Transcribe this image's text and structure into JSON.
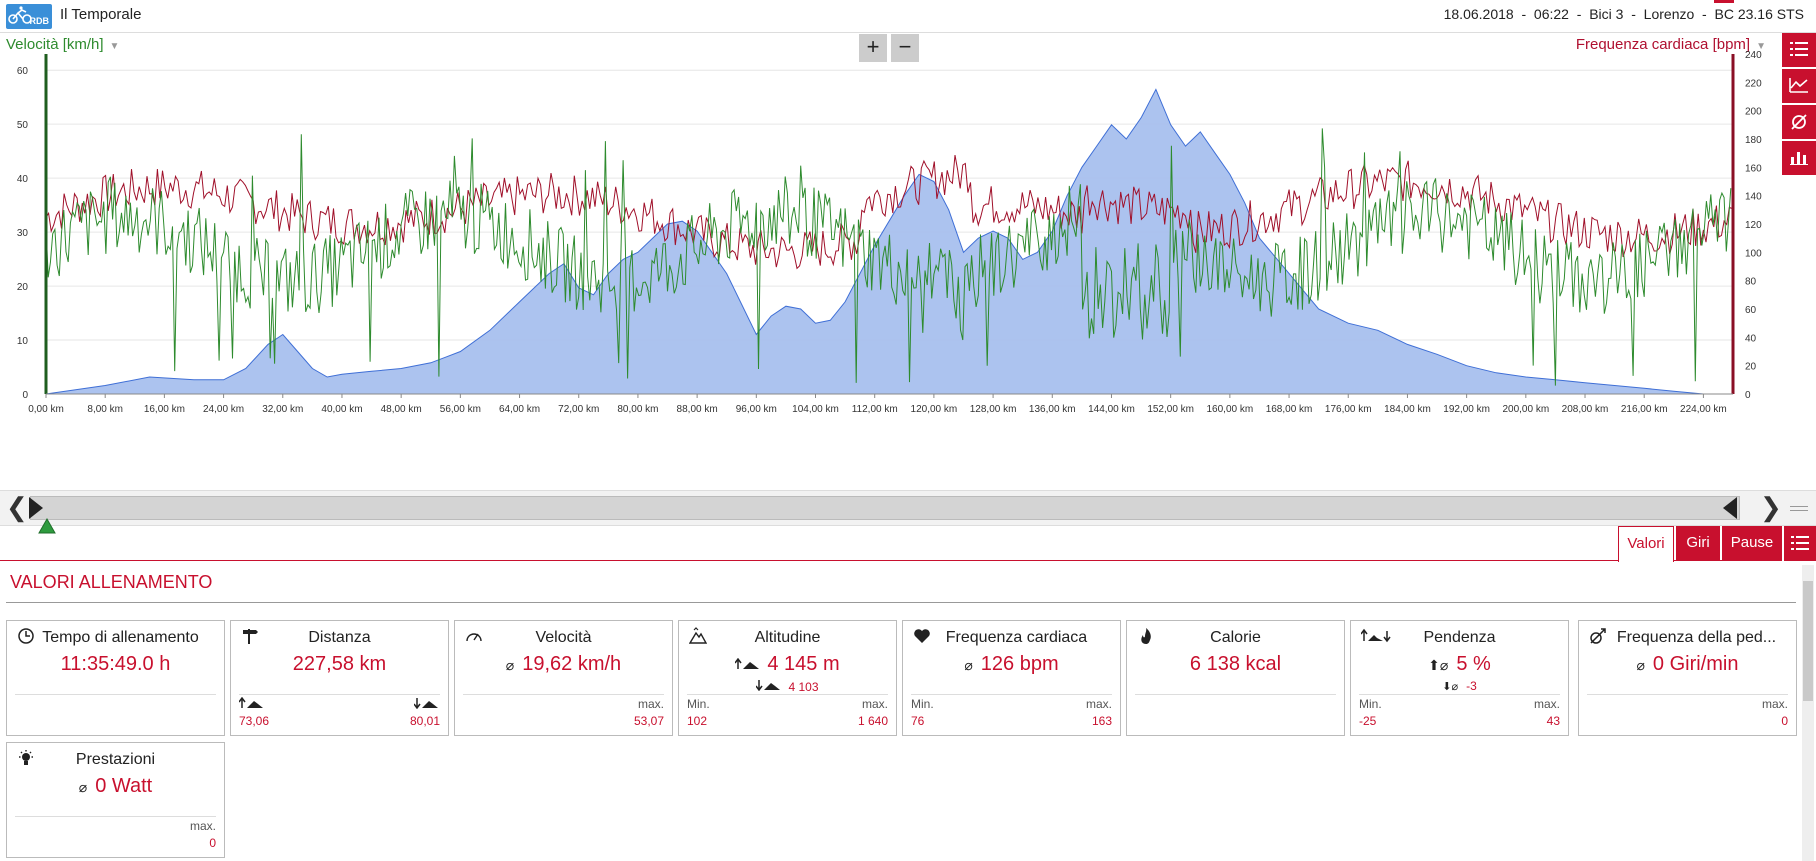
{
  "app": {
    "logo_text": "RDB",
    "title": "Il Temporale"
  },
  "session": {
    "date": "18.06.2018",
    "time": "06:22",
    "bike": "Bici 3",
    "user": "Lorenzo",
    "device": "BC 23.16 STS"
  },
  "chart": {
    "left_axis_title": "Velocità [km/h]",
    "right_axis_title": "Frequenza cardiaca [bpm]",
    "zoom_in": "+",
    "zoom_out": "−",
    "sidebar_icons": [
      "list-icon",
      "line-chart-icon",
      "average-icon",
      "bar-chart-icon"
    ]
  },
  "chart_data": {
    "type": "line",
    "xlabel": "",
    "ylabel": "Velocità [km/h]",
    "y2label": "Frequenza cardiaca [bpm]",
    "x_ticks": [
      "0,00 km",
      "8,00 km",
      "16,00 km",
      "24,00 km",
      "32,00 km",
      "40,00 km",
      "48,00 km",
      "56,00 km",
      "64,00 km",
      "72,00 km",
      "80,00 km",
      "88,00 km",
      "96,00 km",
      "104,00 km",
      "112,00 km",
      "120,00 km",
      "128,00 km",
      "136,00 km",
      "144,00 km",
      "152,00 km",
      "160,00 km",
      "168,00 km",
      "176,00 km",
      "184,00 km",
      "192,00 km",
      "200,00 km",
      "208,00 km",
      "216,00 km",
      "224,00 km"
    ],
    "xlim": [
      0,
      228
    ],
    "y_left_ticks": [
      "0",
      "10",
      "20",
      "30",
      "40",
      "50",
      "60"
    ],
    "y_left_lim": [
      0,
      63
    ],
    "y_right_ticks": [
      "0",
      "20",
      "40",
      "60",
      "80",
      "100",
      "120",
      "140",
      "160",
      "180",
      "200",
      "220",
      "240"
    ],
    "y_right_lim": [
      0,
      240
    ],
    "series": [
      {
        "name": "Altitudine",
        "color": "#a8c0ee",
        "axis": "right",
        "kind": "area",
        "x": [
          0,
          8,
          14,
          20,
          24,
          27,
          30,
          32,
          34,
          36,
          38,
          40,
          44,
          48,
          52,
          54,
          56,
          60,
          64,
          68,
          70,
          72,
          74,
          76,
          78,
          80,
          84,
          86,
          88,
          92,
          96,
          98,
          100,
          102,
          104,
          106,
          108,
          110,
          112,
          116,
          118,
          120,
          122,
          124,
          126,
          128,
          130,
          132,
          134,
          136,
          138,
          140,
          142,
          144,
          146,
          148,
          150,
          152,
          154,
          156,
          158,
          160,
          162,
          164,
          168,
          172,
          176,
          180,
          184,
          188,
          192,
          196,
          200,
          204,
          208,
          212,
          216,
          220,
          224,
          228
        ],
        "y": [
          0,
          6,
          12,
          10,
          10,
          18,
          35,
          42,
          30,
          18,
          12,
          14,
          16,
          18,
          22,
          26,
          30,
          45,
          65,
          85,
          92,
          75,
          70,
          85,
          95,
          100,
          120,
          122,
          115,
          85,
          42,
          55,
          62,
          60,
          50,
          52,
          65,
          85,
          105,
          140,
          155,
          150,
          130,
          100,
          110,
          115,
          110,
          95,
          100,
          115,
          140,
          160,
          175,
          190,
          180,
          195,
          215,
          190,
          175,
          185,
          170,
          155,
          135,
          110,
          85,
          60,
          50,
          45,
          35,
          28,
          20,
          15,
          12,
          10,
          8,
          6,
          4,
          2,
          0,
          0
        ]
      },
      {
        "name": "Velocità",
        "color": "#2e8b2e",
        "axis": "left",
        "kind": "line"
      },
      {
        "name": "Frequenza cardiaca",
        "color": "#a0102a",
        "axis": "right",
        "kind": "line"
      }
    ],
    "grid": true
  },
  "tabs": [
    "Valori",
    "Giri",
    "Pause"
  ],
  "section_title": "VALORI ALLENAMENTO",
  "cards": {
    "time": {
      "title": "Tempo di allenamento",
      "value": "11:35:49.0 h"
    },
    "distance": {
      "title": "Distanza",
      "value": "227,58 km",
      "up_val": "73,06",
      "down_val": "80,01"
    },
    "speed": {
      "title": "Velocità",
      "avg_sym": "⌀",
      "value": "19,62 km/h",
      "max_label": "max.",
      "max_val": "53,07"
    },
    "altitude": {
      "title": "Altitudine",
      "value": "4 145 m",
      "down_value": "4 103",
      "min_label": "Min.",
      "min_val": "102",
      "max_label": "max.",
      "max_val": "1 640"
    },
    "heart": {
      "title": "Frequenza cardiaca",
      "avg_sym": "⌀",
      "value": "126 bpm",
      "min_label": "Min.",
      "min_val": "76",
      "max_label": "max.",
      "max_val": "163"
    },
    "calories": {
      "title": "Calorie",
      "value": "6 138 kcal"
    },
    "slope": {
      "title": "Pendenza",
      "value": "5 %",
      "down_value": "-3",
      "min_label": "Min.",
      "min_val": "-25",
      "max_label": "max.",
      "max_val": "43"
    },
    "cadence": {
      "title": "Frequenza della ped...",
      "avg_sym": "⌀",
      "value": "0 Giri/min",
      "max_label": "max.",
      "max_val": "0"
    },
    "power": {
      "title": "Prestazioni",
      "avg_sym": "⌀",
      "value": "0 Watt",
      "max_label": "max.",
      "max_val": "0"
    }
  }
}
